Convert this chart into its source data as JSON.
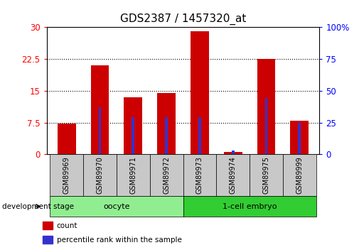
{
  "title": "GDS2387 / 1457320_at",
  "categories": [
    "GSM89969",
    "GSM89970",
    "GSM89971",
    "GSM89972",
    "GSM89973",
    "GSM89974",
    "GSM89975",
    "GSM89999"
  ],
  "count_values": [
    7.3,
    21.0,
    13.5,
    14.5,
    29.0,
    0.5,
    22.5,
    8.0
  ],
  "percentile_values": [
    0.3,
    37.0,
    29.0,
    29.0,
    29.0,
    3.0,
    44.0,
    25.0
  ],
  "count_color": "#cc0000",
  "percentile_color": "#3333cc",
  "left_ylim": [
    0,
    30
  ],
  "right_ylim": [
    0,
    100
  ],
  "left_yticks": [
    0,
    7.5,
    15,
    22.5,
    30
  ],
  "right_yticks": [
    0,
    25,
    50,
    75,
    100
  ],
  "left_yticklabels": [
    "0",
    "7.5",
    "15",
    "22.5",
    "30"
  ],
  "right_yticklabels": [
    "0",
    "25",
    "50",
    "75",
    "100%"
  ],
  "groups": [
    {
      "label": "oocyte",
      "start": 0,
      "end": 3,
      "color": "#90ee90"
    },
    {
      "label": "1-cell embryo",
      "start": 4,
      "end": 7,
      "color": "#32cd32"
    }
  ],
  "stage_label": "development stage",
  "legend_items": [
    {
      "label": "count",
      "color": "#cc0000"
    },
    {
      "label": "percentile rank within the sample",
      "color": "#3333cc"
    }
  ],
  "title_fontsize": 11,
  "tick_fontsize": 8.5,
  "bar_width": 0.55,
  "blue_bar_width": 0.08
}
